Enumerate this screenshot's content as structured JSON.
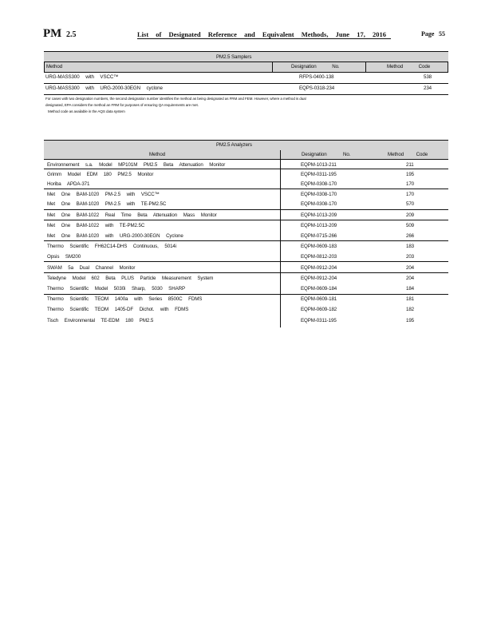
{
  "header": {
    "pm": "PM",
    "size": "2.5",
    "title": "List of Designated Reference and Equivalent Methods, June 17, 2016",
    "page_label": "Page",
    "page_number": "55"
  },
  "samplers": {
    "title": "PM2.5 Samplers",
    "col_method": "Method",
    "col_designation": "Designation No.",
    "col_code": "Method Code",
    "footnote_mark": "¹",
    "rows": [
      {
        "method": "URG-MASS300 with VSCC™",
        "designation": "RFPS-0400-138",
        "code": "538"
      },
      {
        "method": "URG-MASS300 with URG-2000-30EGN cyclone",
        "designation": "EQPS-0318-234",
        "code": "234"
      }
    ],
    "note": [
      "For cases with two designation numbers, the second designation number identifies the method as being designated as FRM and FEM. However, where a method is dual",
      "designated, EPA considers the method an FRM for purposes of ensuring QA requirements are met.",
      "Method code as available in the AQS data system"
    ]
  },
  "analyzers": {
    "title": "PM2.5 Analyzers",
    "col_method": "Method",
    "col_designation": "Designation",
    "col_no": "No.",
    "col_code": "Method Code",
    "footnote_mark": "¹",
    "rows": [
      {
        "method": "Environnement s.a. Model MP101M PM2.5 Beta Attenuation Monitor",
        "designation": "EQPM-1013-211",
        "code": "211"
      },
      {
        "method": "Grimm Model EDM 180 PM2.5 Monitor",
        "designation": "EQPM-0311-195",
        "code": "195"
      },
      {
        "method": "Horiba APDA-371",
        "designation": "EQPM-0308-170",
        "code": "170"
      },
      {
        "method": "Met One BAM-1020 PM-2.5 with VSCC™",
        "designation": "EQPM-0308-170",
        "code": "170"
      },
      {
        "method": "Met One BAM-1020 PM-2.5 with TE-PM2.5C",
        "designation": "EQPM-0308-170",
        "code": "570"
      },
      {
        "method": "Met One BAM-1022 Real Time Beta Attenuation Mass Monitor",
        "designation": "EQPM-1013-209",
        "code": "209"
      },
      {
        "method": "Met One BAM-1022 with TE-PM2.5C",
        "designation": "EQPM-1013-209",
        "code": "509"
      },
      {
        "method": "Met One BAM-1020 with URG-2000-30EGN Cyclone",
        "designation": "EQPM-0715-266",
        "code": "266"
      },
      {
        "method": "Thermo Scientific FH62C14-DHS Continuous, 5014i",
        "designation": "EQPM-0609-183",
        "code": "183"
      },
      {
        "method": "Opsis SM200",
        "designation": "EQPM-0812-203",
        "code": "203"
      },
      {
        "method": "SWAM 5a Dual Channel Monitor",
        "designation": "EQPM-0912-204",
        "code": "204"
      },
      {
        "method": "Teledyne Model 602 Beta PLUS Particle Measurement System",
        "designation": "EQPM-0912-204",
        "code": "204"
      },
      {
        "method": "Thermo Scientific Model 5030i Sharp, 5030 SHARP",
        "designation": "EQPM-0609-184",
        "code": "184"
      },
      {
        "method": "Thermo Scientific TEOM 1400a with Series 8500C FDMS",
        "designation": "EQPM-0609-181",
        "code": "181"
      },
      {
        "method": "Thermo Scientific TEOM 1405-DF Dichot. with FDMS",
        "designation": "EQPM-0609-182",
        "code": "182"
      },
      {
        "method": "Tisch Environmental TE-EDM 180 PM2.5",
        "designation": "EQPM-0311-195",
        "code": "195"
      }
    ]
  }
}
